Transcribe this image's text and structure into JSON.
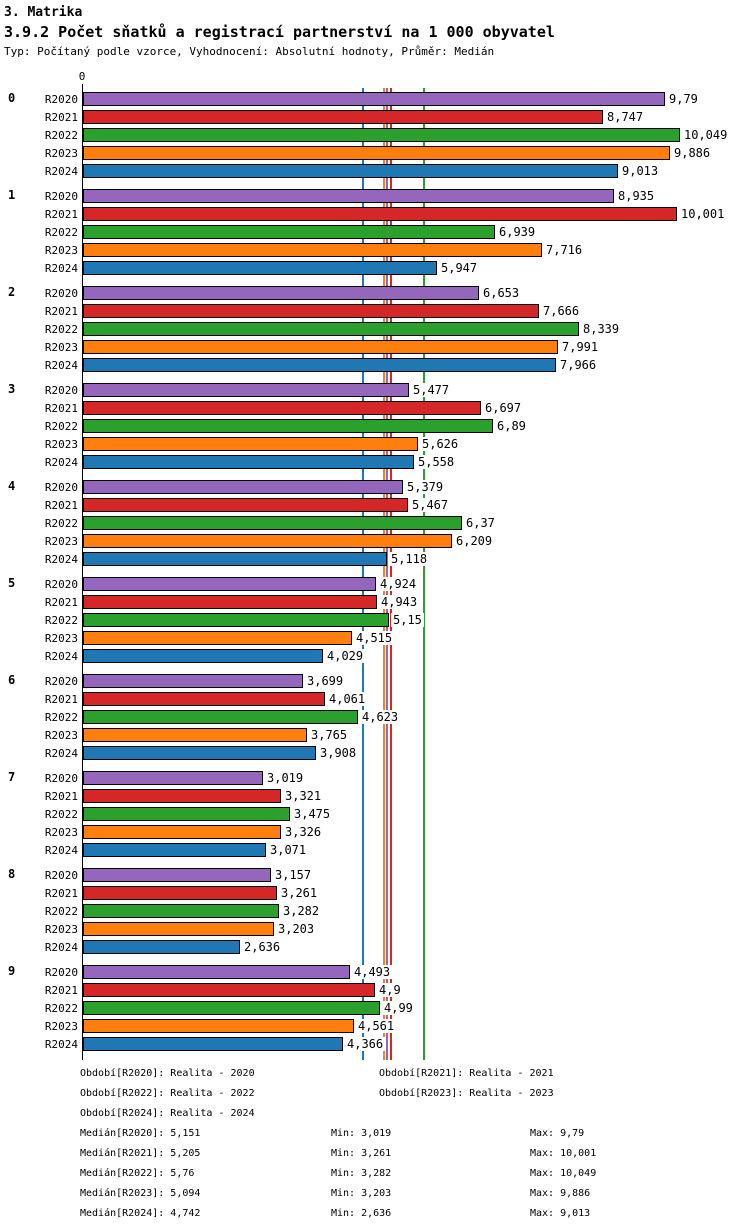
{
  "header": {
    "title": "3. Matrika",
    "subtitle": "3.9.2 Počet sňatků a registrací partnerství na 1 000 obyvatel",
    "meta": "Typ: Počítaný podle vzorce, Vyhodnocení: Absolutní hodnoty, Průměr: Medián"
  },
  "chart_data": {
    "type": "bar",
    "orientation": "horizontal",
    "title": "3.9.2 Počet sňatků a registrací partnerství na 1 000 obyvatel",
    "xlabel": "",
    "ylabel": "",
    "axis_origin_label": "0",
    "xlim": [
      0,
      10.6
    ],
    "grid": false,
    "value_label_decimal_separator": ",",
    "categories": [
      "0",
      "1",
      "2",
      "3",
      "4",
      "5",
      "6",
      "7",
      "8",
      "9"
    ],
    "series": [
      {
        "name": "R2020",
        "color": "#9467bd",
        "values": [
          9.79,
          8.935,
          6.653,
          5.477,
          5.379,
          4.924,
          3.699,
          3.019,
          3.157,
          4.493
        ],
        "median": 5.151
      },
      {
        "name": "R2021",
        "color": "#d62728",
        "values": [
          8.747,
          10.001,
          7.666,
          6.697,
          5.467,
          4.943,
          4.061,
          3.321,
          3.261,
          4.9
        ],
        "median": 5.205
      },
      {
        "name": "R2022",
        "color": "#2ca02c",
        "values": [
          10.049,
          6.939,
          8.339,
          6.89,
          6.37,
          5.15,
          4.623,
          3.475,
          3.282,
          4.99
        ],
        "median": 5.76
      },
      {
        "name": "R2023",
        "color": "#ff7f0e",
        "values": [
          9.886,
          7.716,
          7.991,
          5.626,
          6.209,
          4.515,
          3.765,
          3.326,
          3.203,
          4.561
        ],
        "median": 5.094
      },
      {
        "name": "R2024",
        "color": "#1f77b4",
        "values": [
          9.013,
          5.947,
          7.966,
          5.558,
          5.118,
          4.029,
          3.908,
          3.071,
          2.636,
          4.366
        ],
        "median": 4.742
      }
    ],
    "median_lines": [
      {
        "series": "R2020",
        "value": 5.151,
        "color": "#9467bd"
      },
      {
        "series": "R2021",
        "value": 5.205,
        "color": "#d62728"
      },
      {
        "series": "R2022",
        "value": 5.76,
        "color": "#2ca02c"
      },
      {
        "series": "R2023",
        "value": 5.094,
        "color": "#ff7f0e"
      },
      {
        "series": "R2024",
        "value": 4.742,
        "color": "#1f77b4"
      }
    ],
    "legend_position": "bottom"
  },
  "legend": {
    "period_rows": [
      {
        "left": "Období[R2020]: Realita - 2020",
        "right": "Období[R2021]: Realita - 2021"
      },
      {
        "left": "Období[R2022]: Realita - 2022",
        "right": "Období[R2023]: Realita - 2023"
      },
      {
        "left": "Období[R2024]: Realita - 2024",
        "right": ""
      }
    ],
    "stat_rows": [
      {
        "median": "Medián[R2020]: 5,151",
        "min": "Min: 3,019",
        "max": "Max: 9,79"
      },
      {
        "median": "Medián[R2021]: 5,205",
        "min": "Min: 3,261",
        "max": "Max: 10,001"
      },
      {
        "median": "Medián[R2022]: 5,76",
        "min": "Min: 3,282",
        "max": "Max: 10,049"
      },
      {
        "median": "Medián[R2023]: 5,094",
        "min": "Min: 3,203",
        "max": "Max: 9,886"
      },
      {
        "median": "Medián[R2024]: 4,742",
        "min": "Min: 2,636",
        "max": "Max: 9,013"
      }
    ]
  }
}
